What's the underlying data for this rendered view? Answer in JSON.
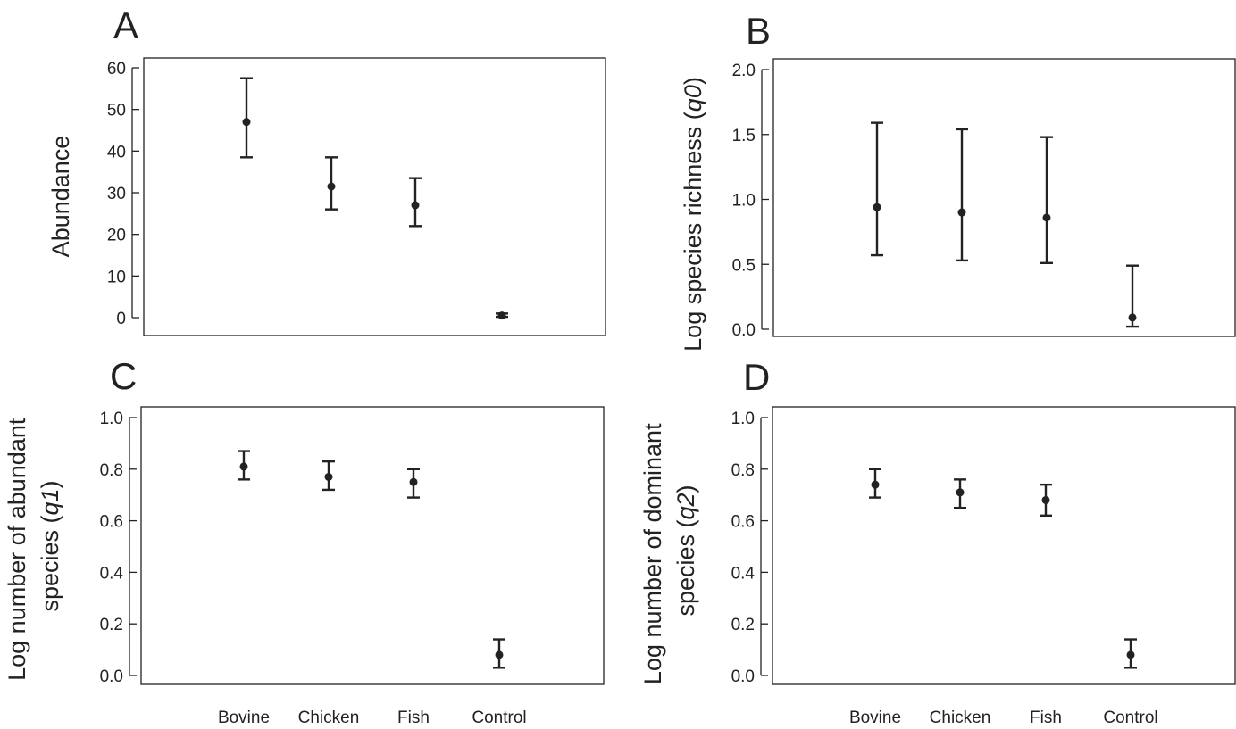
{
  "chart_data": [
    {
      "panel": "A",
      "type": "scatter",
      "categories": [
        "Bovine",
        "Chicken",
        "Fish",
        "Control"
      ],
      "ylabel": "Abundance",
      "ylim": [
        0,
        60
      ],
      "yticks": [
        "0",
        "10",
        "20",
        "30",
        "40",
        "50",
        "60"
      ],
      "xticks": [],
      "series": [
        {
          "values": [
            47,
            31.5,
            27,
            0.5
          ],
          "lower": [
            38.5,
            26,
            22,
            0.2
          ],
          "upper": [
            57.5,
            38.5,
            33.5,
            1
          ]
        }
      ]
    },
    {
      "panel": "B",
      "type": "scatter",
      "categories": [
        "Bovine",
        "Chicken",
        "Fish",
        "Control"
      ],
      "ylabel": "Log species richness (q0)",
      "ylim": [
        0,
        2
      ],
      "yticks": [
        "0.0",
        "0.5",
        "1.0",
        "1.5",
        "2.0"
      ],
      "xticks": [],
      "series": [
        {
          "values": [
            0.94,
            0.9,
            0.86,
            0.09
          ],
          "lower": [
            0.57,
            0.53,
            0.51,
            0.02
          ],
          "upper": [
            1.59,
            1.54,
            1.48,
            0.49
          ]
        }
      ]
    },
    {
      "panel": "C",
      "type": "scatter",
      "categories": [
        "Bovine",
        "Chicken",
        "Fish",
        "Control"
      ],
      "ylabel_lines": [
        "Log number of abundant",
        "species (q1)"
      ],
      "ylim": [
        0,
        1
      ],
      "yticks": [
        "0.0",
        "0.2",
        "0.4",
        "0.6",
        "0.8",
        "1.0"
      ],
      "xticks": [
        "Bovine",
        "Chicken",
        "Fish",
        "Control"
      ],
      "series": [
        {
          "values": [
            0.81,
            0.77,
            0.75,
            0.08
          ],
          "lower": [
            0.76,
            0.72,
            0.69,
            0.03
          ],
          "upper": [
            0.87,
            0.83,
            0.8,
            0.14
          ]
        }
      ]
    },
    {
      "panel": "D",
      "type": "scatter",
      "categories": [
        "Bovine",
        "Chicken",
        "Fish",
        "Control"
      ],
      "ylabel_lines": [
        "Log number of dominant",
        "species (q2)"
      ],
      "ylim": [
        0,
        1
      ],
      "yticks": [
        "0.0",
        "0.2",
        "0.4",
        "0.6",
        "0.8",
        "1.0"
      ],
      "xticks": [
        "Bovine",
        "Chicken",
        "Fish",
        "Control"
      ],
      "series": [
        {
          "values": [
            0.74,
            0.71,
            0.68,
            0.08
          ],
          "lower": [
            0.69,
            0.65,
            0.62,
            0.03
          ],
          "upper": [
            0.8,
            0.76,
            0.74,
            0.14
          ]
        }
      ]
    }
  ]
}
